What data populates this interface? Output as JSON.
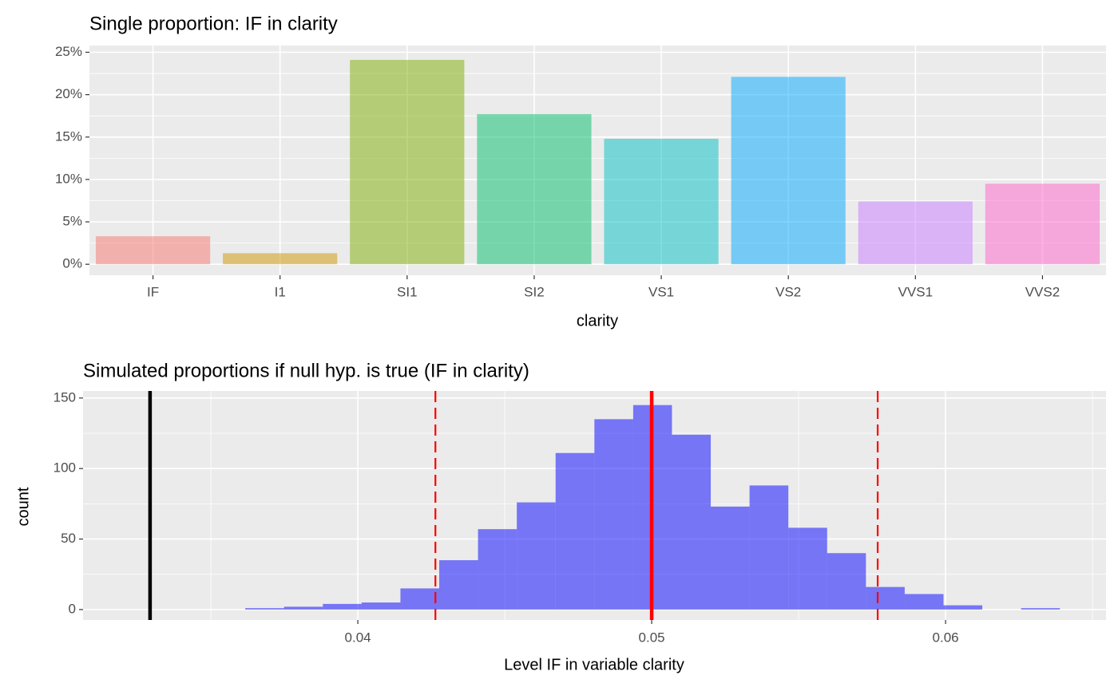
{
  "chart_data": [
    {
      "type": "bar",
      "title": "Single proportion: IF in clarity",
      "x_label": "clarity",
      "categories": [
        "IF",
        "I1",
        "SI1",
        "SI2",
        "VS1",
        "VS2",
        "VVS1",
        "VVS2"
      ],
      "values": [
        3.3,
        1.3,
        24.1,
        17.7,
        14.8,
        22.1,
        7.4,
        9.5
      ],
      "colors": [
        "#F8766D",
        "#CD9600",
        "#7CAE00",
        "#00BE67",
        "#00BFC4",
        "#00A9FF",
        "#C77CFF",
        "#FF61CC"
      ],
      "opacity": 0.5,
      "ylim": [
        -1.3,
        25.8
      ],
      "yticks": [
        {
          "value": 0,
          "label": "0%"
        },
        {
          "value": 5,
          "label": "5%"
        },
        {
          "value": 10,
          "label": "10%"
        },
        {
          "value": 15,
          "label": "15%"
        },
        {
          "value": 20,
          "label": "20%"
        },
        {
          "value": 25,
          "label": "25%"
        }
      ],
      "grid": true
    },
    {
      "type": "histogram",
      "title": "Simulated proportions if null hyp. is true (IF in clarity)",
      "x_label": "Level IF in variable clarity",
      "y_label": "count",
      "bins": [
        0.03617,
        0.03749,
        0.03881,
        0.04013,
        0.04145,
        0.04277,
        0.04409,
        0.04541,
        0.04673,
        0.04805,
        0.04937,
        0.05069,
        0.05201,
        0.05333,
        0.05465,
        0.05597,
        0.05729,
        0.05861,
        0.05993,
        0.06125,
        0.06257,
        0.06389
      ],
      "counts": [
        1,
        2,
        4,
        5,
        15,
        35,
        57,
        76,
        111,
        135,
        145,
        124,
        73,
        88,
        58,
        40,
        16,
        11,
        3,
        0,
        1
      ],
      "color": "#0000FF",
      "opacity": 0.5,
      "reference_lines": [
        {
          "value": 0.03293,
          "color": "#000000",
          "style": "solid"
        },
        {
          "value": 0.05,
          "color": "#FF0000",
          "style": "solid"
        },
        {
          "value": 0.04264,
          "color": "#FF0000",
          "style": "dashed"
        },
        {
          "value": 0.05769,
          "color": "#FF0000",
          "style": "dashed"
        }
      ],
      "xlim": [
        0.03065,
        0.06546
      ],
      "xticks": [
        0.04,
        0.05,
        0.06
      ],
      "ylim": [
        -7.4,
        155
      ],
      "yticks": [
        0,
        50,
        100,
        150
      ],
      "grid": true
    }
  ]
}
